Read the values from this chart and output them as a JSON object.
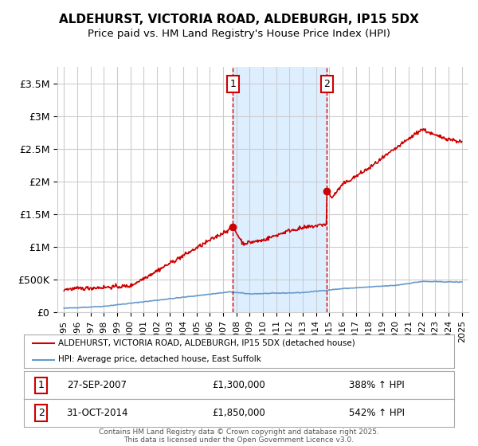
{
  "title_line1": "ALDEHURST, VICTORIA ROAD, ALDEBURGH, IP15 5DX",
  "title_line2": "Price paid vs. HM Land Registry's House Price Index (HPI)",
  "ylim": [
    0,
    3750000
  ],
  "xlim": [
    1994.5,
    2025.5
  ],
  "yticks": [
    0,
    500000,
    1000000,
    1500000,
    2000000,
    2500000,
    3000000,
    3500000
  ],
  "ytick_labels": [
    "£0",
    "£500K",
    "£1M",
    "£1.5M",
    "£2M",
    "£2.5M",
    "£3M",
    "£3.5M"
  ],
  "xticks": [
    1995,
    1996,
    1997,
    1998,
    1999,
    2000,
    2001,
    2002,
    2003,
    2004,
    2005,
    2006,
    2007,
    2008,
    2009,
    2010,
    2011,
    2012,
    2013,
    2014,
    2015,
    2016,
    2017,
    2018,
    2019,
    2020,
    2021,
    2022,
    2023,
    2024,
    2025
  ],
  "sale1_x": 2007.74,
  "sale1_y": 1300000,
  "sale2_x": 2014.83,
  "sale2_y": 1850000,
  "vline1_x": 2007.74,
  "vline2_x": 2014.83,
  "shade_start": 2007.74,
  "shade_end": 2014.83,
  "legend_line1": "ALDEHURST, VICTORIA ROAD, ALDEBURGH, IP15 5DX (detached house)",
  "legend_line2": "HPI: Average price, detached house, East Suffolk",
  "annotation1_label": "1",
  "annotation2_label": "2",
  "table_row1": [
    "1",
    "27-SEP-2007",
    "£1,300,000",
    "388% ↑ HPI"
  ],
  "table_row2": [
    "2",
    "31-OCT-2014",
    "£1,850,000",
    "542% ↑ HPI"
  ],
  "footer": "Contains HM Land Registry data © Crown copyright and database right 2025.\nThis data is licensed under the Open Government Licence v3.0.",
  "line_color_red": "#cc0000",
  "line_color_blue": "#6699cc",
  "shade_color": "#ddeeff",
  "grid_color": "#cccccc",
  "background_color": "#ffffff"
}
